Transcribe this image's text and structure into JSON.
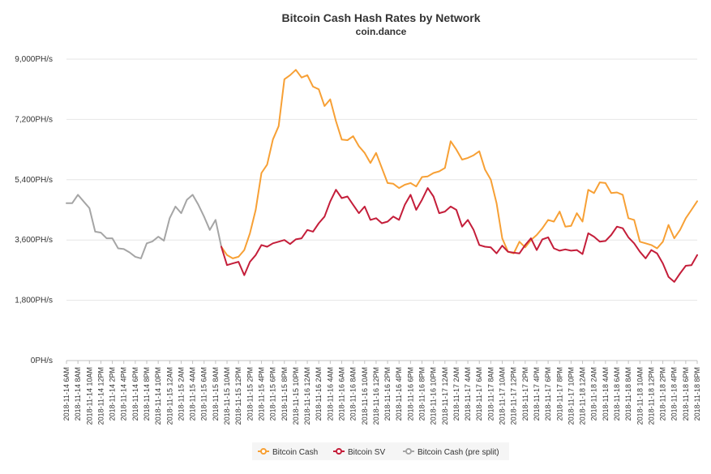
{
  "chart_data": {
    "type": "line",
    "title": "Bitcoin Cash Hash Rates by Network",
    "subtitle": "coin.dance",
    "ylim": [
      0,
      9000
    ],
    "yticks": [
      "0PH/s",
      "1,800PH/s",
      "3,600PH/s",
      "5,400PH/s",
      "7,200PH/s",
      "9,000PH/s"
    ],
    "ytick_values": [
      0,
      1800,
      3600,
      5400,
      7200,
      9000
    ],
    "x_categories": [
      "2018-11-14 6AM",
      "2018-11-14 8AM",
      "2018-11-14 10AM",
      "2018-11-14 12PM",
      "2018-11-14 2PM",
      "2018-11-14 4PM",
      "2018-11-14 6PM",
      "2018-11-14 8PM",
      "2018-11-14 10PM",
      "2018-11-15 12AM",
      "2018-11-15 2AM",
      "2018-11-15 4AM",
      "2018-11-15 6AM",
      "2018-11-15 8AM",
      "2018-11-15 10AM",
      "2018-11-15 12PM",
      "2018-11-15 2PM",
      "2018-11-15 4PM",
      "2018-11-15 6PM",
      "2018-11-15 8PM",
      "2018-11-15 10PM",
      "2018-11-16 12AM",
      "2018-11-16 2AM",
      "2018-11-16 4AM",
      "2018-11-16 6AM",
      "2018-11-16 8AM",
      "2018-11-16 10AM",
      "2018-11-16 12PM",
      "2018-11-16 2PM",
      "2018-11-16 4PM",
      "2018-11-16 6PM",
      "2018-11-16 8PM",
      "2018-11-16 10PM",
      "2018-11-17 12AM",
      "2018-11-17 2AM",
      "2018-11-17 4AM",
      "2018-11-17 6AM",
      "2018-11-17 8AM",
      "2018-11-17 10AM",
      "2018-11-17 12PM",
      "2018-11-17 2PM",
      "2018-11-17 4PM",
      "2018-11-17 6PM",
      "2018-11-17 8PM",
      "2018-11-17 10PM",
      "2018-11-18 12AM",
      "2018-11-18 2AM",
      "2018-11-18 4AM",
      "2018-11-18 6AM",
      "2018-11-18 8AM",
      "2018-11-18 10AM",
      "2018-11-18 12PM",
      "2018-11-18 2PM",
      "2018-11-18 4PM",
      "2018-11-18 6PM",
      "2018-11-18 8PM"
    ],
    "n_points": 111,
    "series": [
      {
        "name": "Bitcoin Cash",
        "color": "#f7a035",
        "x_start": 27,
        "values": [
          3400,
          3150,
          3050,
          3100,
          3300,
          3800,
          4500,
          5600,
          5850,
          6600,
          7000,
          8400,
          8520,
          8680,
          8450,
          8520,
          8180,
          8100,
          7600,
          7800,
          7150,
          6600,
          6580,
          6700,
          6400,
          6200,
          5900,
          6200,
          5750,
          5300,
          5280,
          5150,
          5250,
          5300,
          5200,
          5480,
          5500,
          5600,
          5650,
          5750,
          6550,
          6300,
          6000,
          6050,
          6130,
          6250,
          5700,
          5400,
          4700,
          3650,
          3250,
          3200,
          3550,
          3380,
          3600,
          3750,
          3950,
          4200,
          4150,
          4450,
          4000,
          4020,
          4400,
          4150,
          5100,
          5000,
          5320,
          5300,
          5000,
          5020,
          4950,
          4250,
          4200,
          3550,
          3500,
          3450,
          3350,
          3550,
          4050,
          3650,
          3900,
          4250,
          4500,
          4760
        ]
      },
      {
        "name": "Bitcoin SV",
        "color": "#c41e3a",
        "x_start": 27,
        "values": [
          3400,
          2850,
          2900,
          2950,
          2550,
          2950,
          3150,
          3450,
          3400,
          3500,
          3550,
          3600,
          3480,
          3620,
          3650,
          3900,
          3850,
          4100,
          4300,
          4750,
          5100,
          4850,
          4900,
          4650,
          4400,
          4600,
          4200,
          4250,
          4100,
          4150,
          4300,
          4200,
          4650,
          4950,
          4500,
          4800,
          5150,
          4900,
          4400,
          4450,
          4600,
          4500,
          4000,
          4200,
          3900,
          3450,
          3400,
          3380,
          3200,
          3430,
          3250,
          3220,
          3200,
          3450,
          3650,
          3300,
          3620,
          3680,
          3350,
          3280,
          3320,
          3280,
          3300,
          3180,
          3800,
          3700,
          3550,
          3570,
          3750,
          4000,
          3950,
          3680,
          3500,
          3250,
          3050,
          3300,
          3200,
          2900,
          2500,
          2350,
          2600,
          2830,
          2850,
          3150
        ]
      },
      {
        "name": "Bitcoin Cash (pre split)",
        "color": "#a5a5a5",
        "x_start": 0,
        "values": [
          4700,
          4700,
          4950,
          4750,
          4550,
          3850,
          3820,
          3650,
          3650,
          3350,
          3330,
          3230,
          3100,
          3050,
          3500,
          3560,
          3700,
          3580,
          4250,
          4600,
          4400,
          4800,
          4950,
          4650,
          4300,
          3900,
          4200,
          3400
        ]
      }
    ],
    "legend": {
      "position": "bottom-center",
      "items": [
        "Bitcoin Cash",
        "Bitcoin SV",
        "Bitcoin Cash (pre split)"
      ]
    },
    "grid": true
  }
}
